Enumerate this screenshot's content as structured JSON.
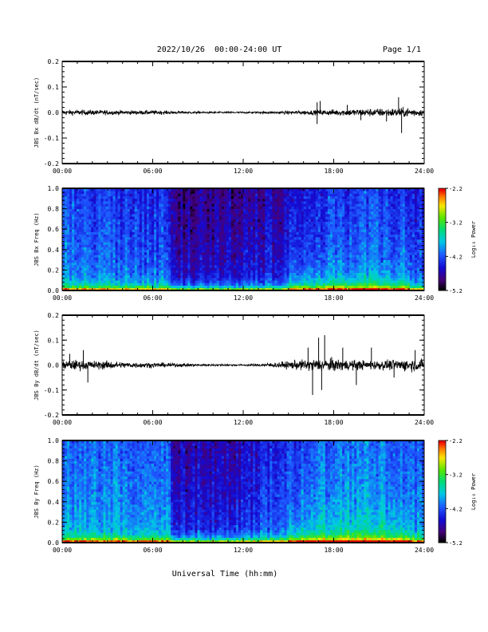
{
  "header": {
    "date_range": "2022/10/26  00:00-24:00 UT",
    "page": "Page 1/1"
  },
  "chart_data": [
    {
      "type": "line",
      "id": "bx-dbdt",
      "ylabel": "JBS Bx dB/dt (nT/sec)",
      "xlim": [
        0,
        24
      ],
      "ylim": [
        -0.2,
        0.2
      ],
      "x_ticks": [
        0,
        6,
        12,
        18,
        24
      ],
      "x_tick_labels": [
        "00:00",
        "06:00",
        "12:00",
        "18:00",
        "24:00"
      ],
      "y_ticks": [
        -0.2,
        -0.1,
        0.0,
        0.1,
        0.2
      ],
      "y_tick_labels": [
        "-0.2",
        "-0.1",
        "0.0",
        "0.1",
        "0.2"
      ],
      "envelope": {
        "hours": [
          0,
          1,
          2,
          3,
          4,
          5,
          6,
          7,
          8,
          9,
          10,
          11,
          12,
          13,
          14,
          15,
          16,
          17,
          18,
          19,
          20,
          21,
          22,
          23,
          24
        ],
        "amplitude": [
          0.012,
          0.012,
          0.012,
          0.011,
          0.01,
          0.01,
          0.01,
          0.008,
          0.006,
          0.005,
          0.005,
          0.004,
          0.004,
          0.005,
          0.006,
          0.008,
          0.01,
          0.012,
          0.014,
          0.016,
          0.018,
          0.019,
          0.02,
          0.022,
          0.015
        ]
      },
      "spikes": [
        {
          "hour": 16.9,
          "value": 0.04
        },
        {
          "hour": 17.1,
          "value": 0.045
        },
        {
          "hour": 16.9,
          "value": -0.045
        },
        {
          "hour": 22.3,
          "value": 0.06
        },
        {
          "hour": 22.5,
          "value": -0.08
        },
        {
          "hour": 18.9,
          "value": 0.03
        },
        {
          "hour": 19.8,
          "value": -0.03
        },
        {
          "hour": 21.5,
          "value": -0.035
        }
      ]
    },
    {
      "type": "heatmap",
      "id": "bx-spec",
      "ylabel": "JBS Bx Freq (Hz)",
      "xlim": [
        0,
        24
      ],
      "ylim": [
        0,
        1.0
      ],
      "x_ticks": [
        0,
        6,
        12,
        18,
        24
      ],
      "x_tick_labels": [
        "00:00",
        "06:00",
        "12:00",
        "18:00",
        "24:00"
      ],
      "y_ticks": [
        0,
        0.2,
        0.4,
        0.6,
        0.8,
        1.0
      ],
      "y_tick_labels": [
        "0.0",
        "0.2",
        "0.4",
        "0.6",
        "0.8",
        "1.0"
      ],
      "colorbar": {
        "label": "Log₁₀ Power",
        "range": [
          -5.2,
          -2.2
        ],
        "ticks": [
          -2.2,
          -3.2,
          -4.2,
          -5.2
        ],
        "tick_labels": [
          "-2.2",
          "-3.2",
          "-4.2",
          "-5.2"
        ]
      },
      "background_level": {
        "hours": [
          0,
          3,
          7.2,
          7.3,
          12,
          15,
          18,
          21,
          24
        ],
        "log_power": [
          -4.05,
          -4.1,
          -4.15,
          -4.6,
          -4.55,
          -4.4,
          -4.1,
          -4.0,
          -4.2
        ]
      },
      "low_frequency_enhancement": "strong power near 0.0-0.05 Hz throughout the day, strongest 18:00-22:00"
    },
    {
      "type": "line",
      "id": "by-dbdt",
      "ylabel": "JBS By dB/dt (nT/sec)",
      "xlim": [
        0,
        24
      ],
      "ylim": [
        -0.2,
        0.2
      ],
      "x_ticks": [
        0,
        6,
        12,
        18,
        24
      ],
      "x_tick_labels": [
        "00:00",
        "06:00",
        "12:00",
        "18:00",
        "24:00"
      ],
      "y_ticks": [
        -0.2,
        -0.1,
        0.0,
        0.1,
        0.2
      ],
      "y_tick_labels": [
        "-0.2",
        "-0.1",
        "0.0",
        "0.1",
        "0.2"
      ],
      "envelope": {
        "hours": [
          0,
          1,
          2,
          3,
          4,
          5,
          6,
          7,
          8,
          9,
          10,
          11,
          12,
          13,
          14,
          15,
          16,
          17,
          18,
          19,
          20,
          21,
          22,
          23,
          24
        ],
        "amplitude": [
          0.02,
          0.025,
          0.02,
          0.02,
          0.015,
          0.013,
          0.012,
          0.01,
          0.008,
          0.006,
          0.005,
          0.005,
          0.004,
          0.006,
          0.012,
          0.018,
          0.025,
          0.03,
          0.03,
          0.025,
          0.022,
          0.022,
          0.025,
          0.03,
          0.025
        ]
      },
      "spikes": [
        {
          "hour": 0.5,
          "value": 0.045
        },
        {
          "hour": 1.4,
          "value": 0.06
        },
        {
          "hour": 1.7,
          "value": -0.07
        },
        {
          "hour": 16.3,
          "value": 0.07
        },
        {
          "hour": 16.6,
          "value": -0.12
        },
        {
          "hour": 17.0,
          "value": 0.11
        },
        {
          "hour": 17.2,
          "value": -0.1
        },
        {
          "hour": 17.4,
          "value": 0.12
        },
        {
          "hour": 18.6,
          "value": 0.07
        },
        {
          "hour": 19.5,
          "value": -0.08
        },
        {
          "hour": 20.5,
          "value": 0.07
        },
        {
          "hour": 22.0,
          "value": -0.05
        },
        {
          "hour": 23.4,
          "value": 0.06
        }
      ]
    },
    {
      "type": "heatmap",
      "id": "by-spec",
      "ylabel": "JBS By Freq (Hz)",
      "xlabel": "Universal Time (hh:mm)",
      "xlim": [
        0,
        24
      ],
      "ylim": [
        0,
        1.0
      ],
      "x_ticks": [
        0,
        6,
        12,
        18,
        24
      ],
      "x_tick_labels": [
        "00:00",
        "06:00",
        "12:00",
        "18:00",
        "24:00"
      ],
      "y_ticks": [
        0,
        0.2,
        0.4,
        0.6,
        0.8,
        1.0
      ],
      "y_tick_labels": [
        "0.0",
        "0.2",
        "0.4",
        "0.6",
        "0.8",
        "1.0"
      ],
      "colorbar": {
        "label": "Log₁₀ Power",
        "range": [
          -5.2,
          -2.2
        ],
        "ticks": [
          -2.2,
          -3.2,
          -4.2,
          -5.2
        ],
        "tick_labels": [
          "-2.2",
          "-3.2",
          "-4.2",
          "-5.2"
        ]
      },
      "background_level": {
        "hours": [
          0,
          3,
          7.2,
          7.3,
          12,
          15,
          18,
          21,
          24
        ],
        "log_power": [
          -3.85,
          -3.9,
          -3.95,
          -4.45,
          -4.4,
          -4.1,
          -3.85,
          -3.8,
          -4.0
        ]
      },
      "low_frequency_enhancement": "strong power near 0.0-0.05 Hz throughout the day, strongest 18:00-22:00"
    }
  ]
}
